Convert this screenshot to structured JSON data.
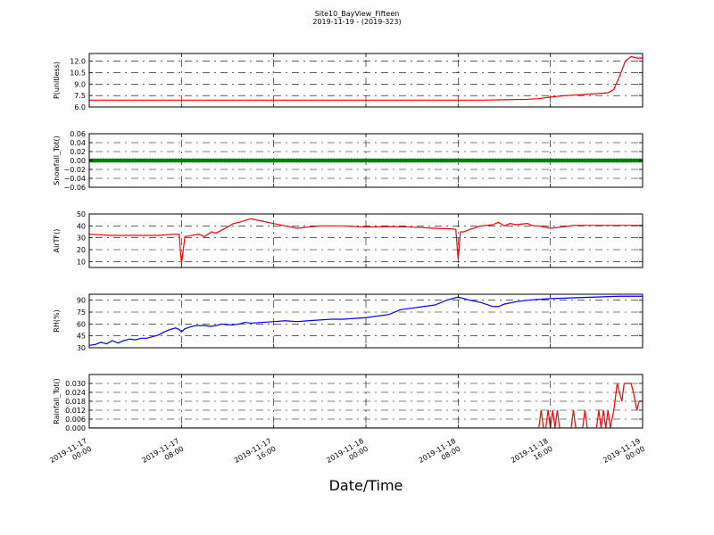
{
  "title": "Site10_BayView_Fifteen",
  "subtitle": "2019-11-19 - (2019-323)",
  "xlabel": "Date/Time",
  "x_ticks": [
    [
      "2019-11-17",
      "00:00"
    ],
    [
      "2019-11-17",
      "08:00"
    ],
    [
      "2019-11-17",
      "16:00"
    ],
    [
      "2019-11-18",
      "00:00"
    ],
    [
      "2019-11-18",
      "08:00"
    ],
    [
      "2019-11-18",
      "16:00"
    ],
    [
      "2019-11-19",
      "00:00"
    ]
  ],
  "chart_data": [
    {
      "type": "line",
      "ylabel": "P(unitless)",
      "color": "#ff0000",
      "ylim": [
        6.0,
        13.0
      ],
      "yticks": [
        "6.0",
        "7.5",
        "9.0",
        "10.5",
        "12.0"
      ],
      "grid": true,
      "x_hours": [
        0,
        2,
        4,
        6,
        8,
        10,
        12,
        14,
        16,
        18,
        20,
        22,
        24,
        26,
        28,
        30,
        32,
        34,
        36,
        38,
        39,
        40,
        41,
        42,
        43,
        44,
        45,
        45.5,
        46,
        46.5,
        47,
        47.5,
        48
      ],
      "y": [
        6.9,
        6.9,
        6.9,
        6.9,
        6.9,
        6.9,
        6.9,
        6.9,
        6.9,
        6.9,
        6.9,
        6.9,
        6.9,
        6.9,
        6.9,
        6.9,
        6.9,
        6.9,
        6.95,
        7.0,
        7.1,
        7.3,
        7.45,
        7.55,
        7.65,
        7.75,
        7.85,
        8.3,
        10.0,
        12.0,
        12.6,
        12.4,
        12.4
      ]
    },
    {
      "type": "scatter",
      "ylabel": "Snowfall_Tot()",
      "color": "#008000",
      "ylim": [
        -0.06,
        0.06
      ],
      "yticks": [
        "−0.06",
        "−0.04",
        "−0.02",
        "0.00",
        "0.02",
        "0.04",
        "0.06"
      ],
      "grid": true,
      "x_hours_range": [
        0,
        48
      ],
      "constant_value": 0.0,
      "interval_hours": 0.25
    },
    {
      "type": "line",
      "ylabel": "AirTF()",
      "color": "#ff0000",
      "ylim": [
        5,
        50
      ],
      "yticks": [
        "10",
        "20",
        "30",
        "40",
        "50"
      ],
      "grid": true,
      "x_hours": [
        0,
        2,
        4,
        6,
        7.3,
        7.8,
        8.0,
        8.3,
        9.5,
        10.0,
        10.3,
        10.6,
        11.0,
        11.6,
        12.0,
        12.5,
        13.0,
        14.0,
        15.0,
        16.0,
        17.0,
        18.0,
        20.0,
        22.0,
        24.0,
        26.0,
        28.0,
        30.0,
        31.5,
        31.8,
        32.0,
        32.2,
        32.5,
        33.0,
        34.0,
        35.0,
        35.5,
        36.0,
        36.5,
        37.0,
        38.0,
        38.5,
        39.0,
        40.0,
        41.0,
        42.0,
        44.0,
        46.0,
        48.0
      ],
      "y": [
        33,
        32,
        32,
        32,
        33,
        33,
        8,
        31,
        33,
        31,
        33,
        35,
        34,
        37,
        39,
        42,
        43,
        46,
        44,
        42,
        40,
        38,
        40,
        40,
        39,
        39.5,
        39,
        38,
        37.5,
        37,
        12,
        35,
        35,
        37,
        40,
        41,
        43,
        40,
        42,
        41,
        42,
        40,
        40,
        38,
        39,
        40.5,
        40.5,
        40.5,
        40.5
      ]
    },
    {
      "type": "line",
      "ylabel": "RH(%)",
      "color": "#0000ff",
      "ylim": [
        30,
        97.5
      ],
      "yticks": [
        "30",
        "45",
        "60",
        "75",
        "90"
      ],
      "grid": true,
      "x_hours": [
        0,
        0.5,
        1.0,
        1.5,
        2.0,
        2.5,
        3.0,
        3.5,
        4.0,
        4.5,
        5.0,
        5.5,
        6.0,
        6.5,
        7.0,
        7.5,
        7.8,
        8.0,
        8.3,
        8.7,
        9.2,
        10.0,
        10.5,
        11.0,
        11.5,
        12.0,
        12.5,
        13.0,
        13.5,
        14.0,
        15.0,
        16.0,
        17.0,
        18.0,
        19.0,
        20.0,
        21.0,
        22.0,
        23.0,
        24.0,
        25.0,
        26.0,
        27.0,
        28.0,
        29.0,
        30.0,
        31.0,
        31.5,
        32.0,
        33.0,
        34.0,
        35.0,
        35.5,
        36.0,
        37.0,
        38.0,
        39.0,
        40.0,
        42.0,
        44.0,
        46.0,
        48.0
      ],
      "y": [
        33,
        34,
        37,
        35,
        39,
        36,
        39,
        41,
        40,
        42,
        42,
        44,
        46,
        50,
        53,
        55,
        53,
        50,
        54,
        56,
        58,
        58,
        57,
        58,
        60,
        59,
        59,
        60,
        62,
        61,
        62,
        63,
        64,
        63,
        64,
        65,
        66,
        66,
        67,
        68,
        70,
        72,
        78,
        80,
        82,
        84,
        90,
        92,
        94,
        90,
        87,
        82,
        82,
        85,
        88,
        90,
        91,
        92,
        93,
        94,
        95,
        95
      ]
    },
    {
      "type": "line",
      "ylabel": "Rainfall_Tot()",
      "color": "#ff0000",
      "ylim": [
        0.0,
        0.036
      ],
      "yticks": [
        "0.000",
        "0.006",
        "0.012",
        "0.018",
        "0.024",
        "0.030"
      ],
      "grid": true,
      "x_hours": [
        0,
        39.0,
        39.2,
        39.4,
        39.6,
        39.8,
        40.0,
        40.2,
        40.4,
        40.6,
        40.8,
        41.0,
        41.2,
        41.8,
        42.0,
        42.2,
        42.8,
        43.0,
        43.2,
        44.0,
        44.2,
        44.4,
        44.6,
        44.8,
        45.0,
        45.2,
        45.5,
        45.8,
        46.2,
        46.4,
        46.8,
        47.0,
        47.2,
        47.5,
        47.7,
        48.0
      ],
      "y": [
        0,
        0,
        0.012,
        0,
        0,
        0.012,
        0,
        0.012,
        0,
        0.012,
        0,
        0,
        0,
        0,
        0.012,
        0,
        0,
        0.012,
        0,
        0,
        0.012,
        0,
        0.012,
        0,
        0.012,
        0,
        0.012,
        0.03,
        0.018,
        0.03,
        0.03,
        0.03,
        0.024,
        0.012,
        0.018,
        0.018
      ]
    }
  ]
}
